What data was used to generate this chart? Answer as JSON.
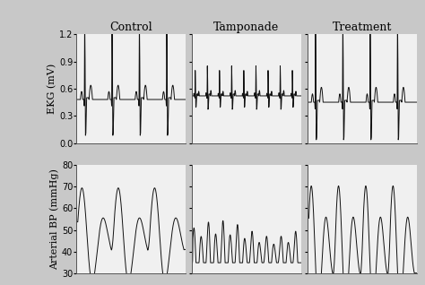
{
  "col_titles": [
    "Control",
    "Tamponade",
    "Treatment"
  ],
  "row_labels": [
    "EKG (mV)",
    "Arterial BP (mmHg)"
  ],
  "ekg_ylim": [
    0.0,
    1.2
  ],
  "ekg_yticks": [
    0.0,
    0.3,
    0.6,
    0.9,
    1.2
  ],
  "bp_ylim": [
    30,
    80
  ],
  "bp_yticks": [
    30,
    40,
    50,
    60,
    70,
    80
  ],
  "bg_color": "#f0f0f0",
  "line_color": "#111111",
  "figure_bg": "#c8c8c8"
}
